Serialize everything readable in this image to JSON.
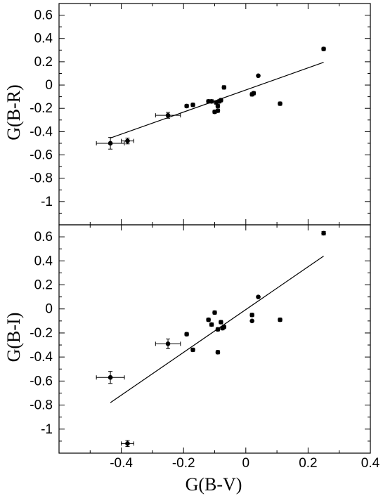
{
  "chart_data": [
    {
      "type": "scatter",
      "ylabel": "G(B-R)",
      "xlabel": "",
      "xlim": [
        -0.6,
        0.4
      ],
      "ylim": [
        -1.2,
        0.7
      ],
      "xticks": [
        -0.4,
        -0.2,
        0,
        0.2,
        0.4
      ],
      "yticks": [
        0.6,
        0.4,
        0.2,
        0,
        -0.2,
        -0.4,
        -0.6,
        -0.8,
        -1
      ],
      "ytick_labels": [
        "0.6",
        "0.4",
        "0.2",
        "0",
        "-0.2",
        "-0.4",
        "-0.6",
        "-0.8",
        "-1"
      ],
      "points": [
        {
          "x": -0.435,
          "y": -0.5,
          "xerr": 0.045,
          "yerr": 0.05
        },
        {
          "x": -0.38,
          "y": -0.48,
          "xerr": 0.02,
          "yerr": 0.025
        },
        {
          "x": -0.25,
          "y": -0.26,
          "xerr": 0.04,
          "yerr": 0.025
        },
        {
          "x": -0.19,
          "y": -0.18,
          "xerr": 0.005,
          "yerr": 0.01
        },
        {
          "x": -0.17,
          "y": -0.17,
          "xerr": 0.005,
          "yerr": 0.01
        },
        {
          "x": -0.12,
          "y": -0.14,
          "xerr": 0.005,
          "yerr": 0.01
        },
        {
          "x": -0.11,
          "y": -0.14,
          "xerr": 0.005,
          "yerr": 0.01
        },
        {
          "x": -0.1,
          "y": -0.23,
          "xerr": 0.005,
          "yerr": 0.01
        },
        {
          "x": -0.095,
          "y": -0.15,
          "xerr": 0.005,
          "yerr": 0.01
        },
        {
          "x": -0.09,
          "y": -0.22,
          "xerr": 0.005,
          "yerr": 0.01
        },
        {
          "x": -0.09,
          "y": -0.18,
          "xerr": 0.005,
          "yerr": 0.01
        },
        {
          "x": -0.085,
          "y": -0.14,
          "xerr": 0.005,
          "yerr": 0.01
        },
        {
          "x": -0.08,
          "y": -0.13,
          "xerr": 0.005,
          "yerr": 0.01
        },
        {
          "x": -0.07,
          "y": -0.02,
          "xerr": 0.005,
          "yerr": 0.01
        },
        {
          "x": 0.02,
          "y": -0.08,
          "xerr": 0.005,
          "yerr": 0.01
        },
        {
          "x": 0.025,
          "y": -0.07,
          "xerr": 0.005,
          "yerr": 0.01
        },
        {
          "x": 0.04,
          "y": 0.08,
          "xerr": 0.0,
          "yerr": 0.0
        },
        {
          "x": 0.11,
          "y": -0.16,
          "xerr": 0.005,
          "yerr": 0.01
        },
        {
          "x": 0.25,
          "y": 0.31,
          "xerr": 0.005,
          "yerr": 0.01
        }
      ],
      "fit_line": {
        "x": [
          -0.435,
          0.25
        ],
        "y": [
          -0.455,
          0.195
        ]
      }
    },
    {
      "type": "scatter",
      "ylabel": "G(B-I)",
      "xlabel": "G(B-V)",
      "xlim": [
        -0.6,
        0.4
      ],
      "ylim": [
        -1.2,
        0.7
      ],
      "xticks": [
        -0.4,
        -0.2,
        0,
        0.2,
        0.4
      ],
      "xtick_labels": [
        "-0.4",
        "-0.2",
        "0",
        "0.2",
        "0.4"
      ],
      "yticks": [
        0.6,
        0.4,
        0.2,
        0,
        -0.2,
        -0.4,
        -0.6,
        -0.8,
        -1
      ],
      "ytick_labels": [
        "0.6",
        "0.4",
        "0.2",
        "0",
        "-0.2",
        "-0.4",
        "-0.6",
        "-0.8",
        "-1"
      ],
      "points": [
        {
          "x": -0.435,
          "y": -0.57,
          "xerr": 0.045,
          "yerr": 0.05
        },
        {
          "x": -0.38,
          "y": -1.12,
          "xerr": 0.02,
          "yerr": 0.025
        },
        {
          "x": -0.25,
          "y": -0.29,
          "xerr": 0.04,
          "yerr": 0.04
        },
        {
          "x": -0.19,
          "y": -0.21,
          "xerr": 0.005,
          "yerr": 0.01
        },
        {
          "x": -0.17,
          "y": -0.34,
          "xerr": 0.005,
          "yerr": 0.01
        },
        {
          "x": -0.12,
          "y": -0.09,
          "xerr": 0.005,
          "yerr": 0.01
        },
        {
          "x": -0.11,
          "y": -0.13,
          "xerr": 0.005,
          "yerr": 0.01
        },
        {
          "x": -0.1,
          "y": -0.03,
          "xerr": 0.005,
          "yerr": 0.01
        },
        {
          "x": -0.09,
          "y": -0.17,
          "xerr": 0.005,
          "yerr": 0.01
        },
        {
          "x": -0.09,
          "y": -0.36,
          "xerr": 0.005,
          "yerr": 0.01
        },
        {
          "x": -0.08,
          "y": -0.11,
          "xerr": 0.005,
          "yerr": 0.01
        },
        {
          "x": -0.075,
          "y": -0.16,
          "xerr": 0.005,
          "yerr": 0.01
        },
        {
          "x": -0.07,
          "y": -0.15,
          "xerr": 0.005,
          "yerr": 0.01
        },
        {
          "x": 0.02,
          "y": -0.05,
          "xerr": 0.005,
          "yerr": 0.01
        },
        {
          "x": 0.02,
          "y": -0.1,
          "xerr": 0.0,
          "yerr": 0.0
        },
        {
          "x": 0.04,
          "y": 0.1,
          "xerr": 0.0,
          "yerr": 0.0
        },
        {
          "x": 0.11,
          "y": -0.09,
          "xerr": 0.005,
          "yerr": 0.01
        },
        {
          "x": 0.25,
          "y": 0.63,
          "xerr": 0.005,
          "yerr": 0.015
        }
      ],
      "fit_line": {
        "x": [
          -0.435,
          0.25
        ],
        "y": [
          -0.78,
          0.44
        ]
      }
    }
  ]
}
